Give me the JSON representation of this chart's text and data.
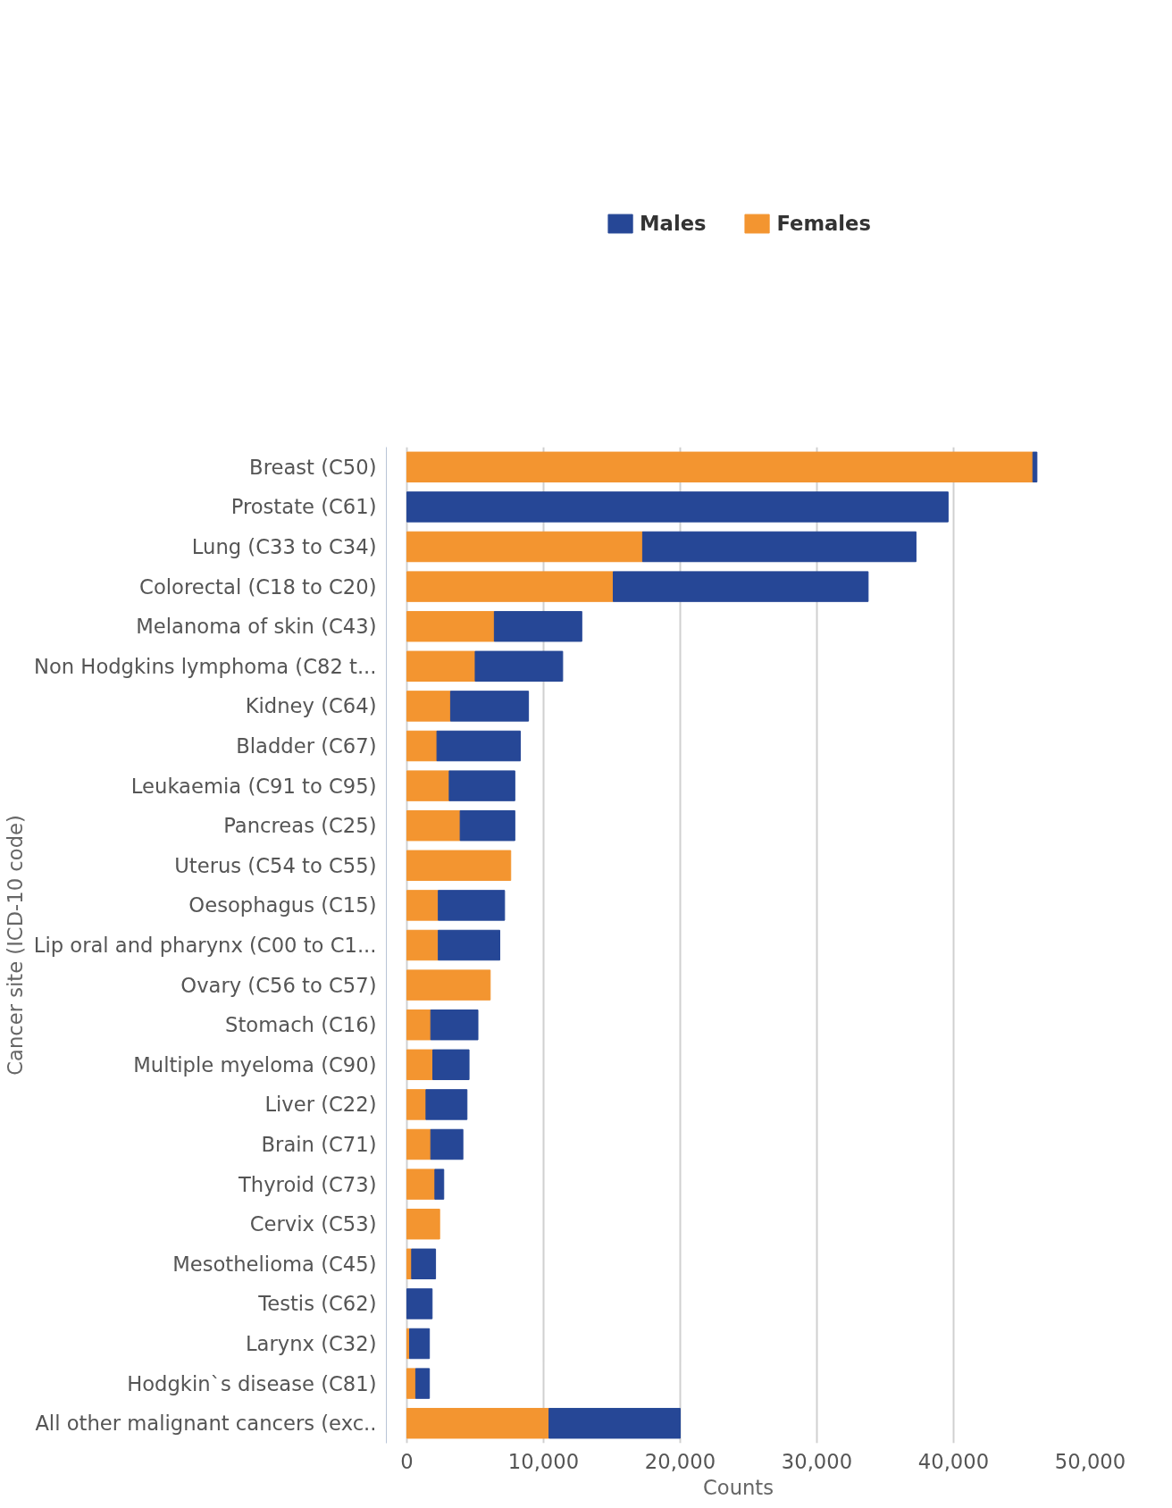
{
  "chart_data": {
    "type": "bar",
    "orientation": "horizontal",
    "stacked": true,
    "xlabel": "Counts",
    "ylabel": "Cancer site (ICD-10 code)",
    "categories": [
      "Breast (C50)",
      "Prostate (C61)",
      "Lung (C33 to C34)",
      "Colorectal (C18 to C20)",
      "Melanoma of skin (C43)",
      "Non Hodgkins lymphoma (C82 t...",
      "Kidney (C64)",
      "Bladder (C67)",
      "Leukaemia (C91 to C95)",
      "Pancreas (C25)",
      "Uterus (C54 to C55)",
      "Oesophagus (C15)",
      "Lip oral and pharynx (C00 to C1...",
      "Ovary (C56 to C57)",
      "Stomach (C16)",
      "Multiple myeloma (C90)",
      "Liver (C22)",
      "Brain (C71)",
      "Thyroid (C73)",
      "Cervix (C53)",
      "Mesothelioma (C45)",
      "Testis (C62)",
      "Larynx (C32)",
      "Hodgkin`s disease (C81)",
      "All other malignant cancers (exc.."
    ],
    "series": [
      {
        "name": "Females",
        "color": "#f39530",
        "values": [
          45800,
          0,
          17250,
          15100,
          6400,
          5000,
          3200,
          2200,
          3100,
          3900,
          7600,
          2300,
          2300,
          6100,
          1750,
          1900,
          1400,
          1750,
          2050,
          2400,
          350,
          0,
          200,
          650,
          10400
        ]
      },
      {
        "name": "Males",
        "color": "#264796",
        "values": [
          300,
          39600,
          20000,
          18650,
          6400,
          6400,
          5700,
          6100,
          4800,
          4000,
          0,
          4850,
          4500,
          0,
          3450,
          2650,
          3000,
          2350,
          650,
          0,
          1750,
          1850,
          1450,
          1000,
          9600
        ]
      }
    ],
    "xlim": [
      -1500,
      50000
    ],
    "xticks": [
      0,
      {
        "value": 10000,
        "label": "10,000"
      },
      {
        "value": 20000,
        "label": "20,000"
      },
      {
        "value": 30000,
        "label": "30,000"
      },
      {
        "value": 40000,
        "label": "40,000"
      },
      {
        "value": 50000,
        "label": "50,000"
      }
    ],
    "grid": "x",
    "legend": "top"
  }
}
